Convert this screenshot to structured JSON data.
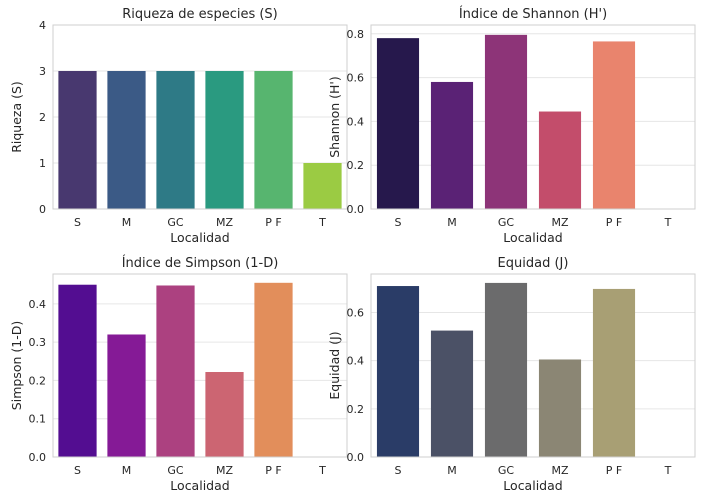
{
  "chart_data": [
    {
      "type": "bar",
      "title": "Riqueza de especies (S)",
      "xlabel": "Localidad",
      "ylabel": "Riqueza (S)",
      "categories": [
        "S",
        "M",
        "GC",
        "MZ",
        "P F",
        "T"
      ],
      "values": [
        3,
        3,
        3,
        3,
        3,
        1
      ],
      "ylim": [
        0,
        4
      ],
      "yticks": [
        "0",
        "1",
        "2",
        "3",
        "4"
      ],
      "grid": true,
      "colors": [
        "#48386f",
        "#3b5a86",
        "#2e7a86",
        "#2a9a80",
        "#57b56f",
        "#9bcb43"
      ]
    },
    {
      "type": "bar",
      "title": "Índice de Shannon (H')",
      "xlabel": "Localidad",
      "ylabel": "Shannon (H')",
      "categories": [
        "S",
        "M",
        "GC",
        "MZ",
        "P F",
        "T"
      ],
      "values": [
        0.78,
        0.58,
        0.795,
        0.445,
        0.765,
        0.0
      ],
      "ylim": [
        0,
        0.84
      ],
      "yticks": [
        "0.0",
        "0.2",
        "0.4",
        "0.6",
        "0.8"
      ],
      "grid": true,
      "colors": [
        "#26184c",
        "#5a2275",
        "#8d3478",
        "#c34d6b",
        "#e9846d",
        "#f6bd8e"
      ]
    },
    {
      "type": "bar",
      "title": "Índice de Simpson (1-D)",
      "xlabel": "Localidad",
      "ylabel": "Simpson (1-D)",
      "categories": [
        "S",
        "M",
        "GC",
        "MZ",
        "P F",
        "T"
      ],
      "values": [
        0.45,
        0.32,
        0.448,
        0.222,
        0.455,
        0.0
      ],
      "ylim": [
        0,
        0.478
      ],
      "yticks": [
        "0.0",
        "0.1",
        "0.2",
        "0.3",
        "0.4"
      ],
      "grid": true,
      "colors": [
        "#530d91",
        "#851a96",
        "#ac4180",
        "#cc6572",
        "#e28e5b",
        "#f3c34e"
      ]
    },
    {
      "type": "bar",
      "title": "Equidad (J)",
      "xlabel": "Localidad",
      "ylabel": "Equidad (J)",
      "categories": [
        "S",
        "M",
        "GC",
        "MZ",
        "P F",
        "T"
      ],
      "values": [
        0.71,
        0.525,
        0.723,
        0.405,
        0.698,
        0.0
      ],
      "ylim": [
        0,
        0.76
      ],
      "yticks": [
        "0.0",
        "0.2",
        "0.4",
        "0.6"
      ],
      "grid": true,
      "colors": [
        "#2a3c67",
        "#4b5166",
        "#6b6b6c",
        "#8b8674",
        "#a89f74",
        "#cfc07a"
      ]
    }
  ]
}
